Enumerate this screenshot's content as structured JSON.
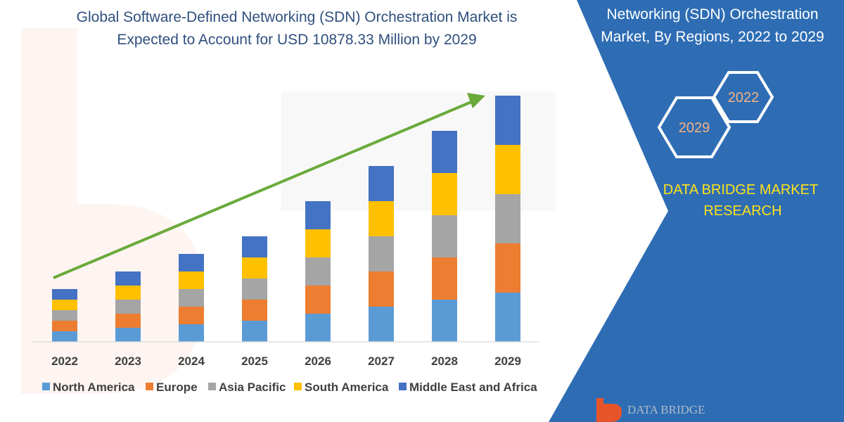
{
  "title": {
    "line1": "Global Software-Defined Networking (SDN) Orchestration Market is",
    "line2": "Expected to Account for USD 10878.33 Million by 2029"
  },
  "panel": {
    "title_line1": "Networking (SDN) Orchestration",
    "title_line2": "Market, By Regions, 2022 to 2029",
    "hex_top": "2022",
    "hex_bottom": "2029",
    "brand_line1": "DATA BRIDGE MARKET",
    "brand_line2": "RESEARCH",
    "logo_text": "DATA BRIDGE",
    "bg_color": "#2e6db4"
  },
  "trend_color": "#6aaa3a",
  "chart_data": {
    "type": "bar",
    "stacked": true,
    "categories": [
      "2022",
      "2023",
      "2024",
      "2025",
      "2026",
      "2027",
      "2028",
      "2029"
    ],
    "series": [
      {
        "name": "North America",
        "color": "#5b9bd5",
        "values": [
          15,
          20,
          25,
          30,
          40,
          50,
          60,
          70
        ]
      },
      {
        "name": "Europe",
        "color": "#ed7d31",
        "values": [
          15,
          20,
          25,
          30,
          40,
          50,
          60,
          70
        ]
      },
      {
        "name": "Asia Pacific",
        "color": "#a5a5a5",
        "values": [
          15,
          20,
          25,
          30,
          40,
          50,
          60,
          70
        ]
      },
      {
        "name": "South America",
        "color": "#ffc000",
        "values": [
          15,
          20,
          25,
          30,
          40,
          50,
          60,
          70
        ]
      },
      {
        "name": "Middle East and Africa",
        "color": "#4472c4",
        "values": [
          15,
          20,
          25,
          30,
          40,
          50,
          60,
          70
        ]
      }
    ],
    "ylim": [
      0,
      350
    ],
    "grid": false,
    "legend_position": "bottom",
    "xlabel": "",
    "ylabel": ""
  }
}
